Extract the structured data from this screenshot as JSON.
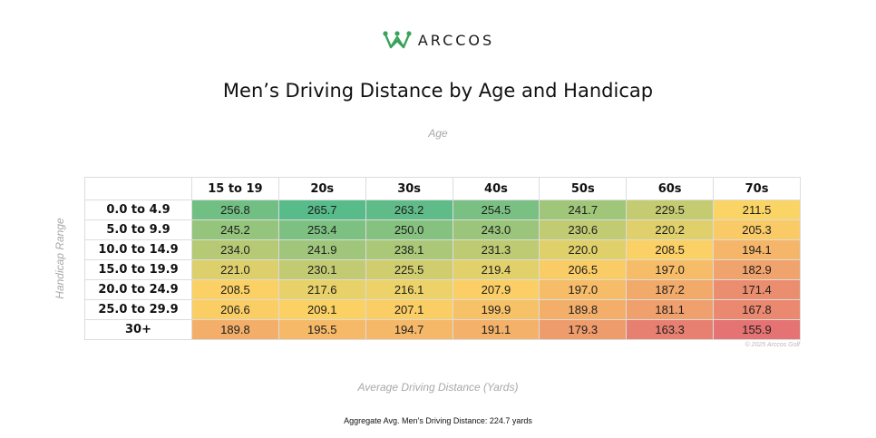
{
  "brand": {
    "name": "ARCCOS",
    "color": "#3aa35a"
  },
  "chart_data": {
    "type": "heatmap",
    "title": "Men’s Driving Distance by Age and Handicap",
    "xlabel": "Age",
    "ylabel": "Handicap Range",
    "colorbar_label": "Average Driving Distance (Yards)",
    "x_categories": [
      "15 to 19",
      "20s",
      "30s",
      "40s",
      "50s",
      "60s",
      "70s"
    ],
    "y_categories": [
      "0.0 to 4.9",
      "5.0 to 9.9",
      "10.0 to 14.9",
      "15.0 to 19.9",
      "20.0 to 24.9",
      "25.0 to 29.9",
      "30+"
    ],
    "values": [
      [
        256.8,
        265.7,
        263.2,
        254.5,
        241.7,
        229.5,
        211.5
      ],
      [
        245.2,
        253.4,
        250.0,
        243.0,
        230.6,
        220.2,
        205.3
      ],
      [
        234.0,
        241.9,
        238.1,
        231.3,
        220.0,
        208.5,
        194.1
      ],
      [
        221.0,
        230.1,
        225.5,
        219.4,
        206.5,
        197.0,
        182.9
      ],
      [
        208.5,
        217.6,
        216.1,
        207.9,
        197.0,
        187.2,
        171.4
      ],
      [
        206.6,
        209.1,
        207.1,
        199.9,
        189.8,
        181.1,
        167.8
      ],
      [
        189.8,
        195.5,
        194.7,
        191.1,
        179.3,
        163.3,
        155.9
      ]
    ],
    "color_scale": {
      "low": "#e57373",
      "mid": "#fcd464",
      "high": "#57bb8a"
    },
    "copyright": "© 2025 Arccos Golf",
    "footnote": "Aggregate Avg. Men’s Driving Distance: 224.7 yards"
  }
}
